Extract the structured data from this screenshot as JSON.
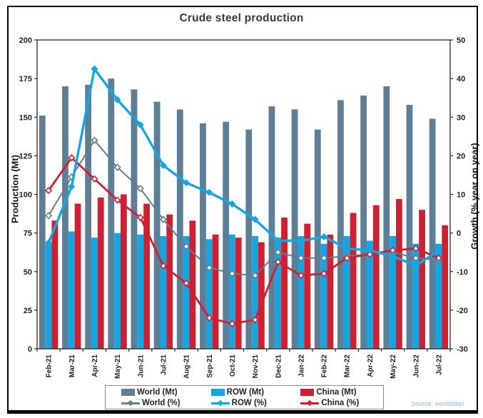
{
  "source": "Source: worldsteel",
  "colors": {
    "world": "#5c7e96",
    "row": "#15a6e2",
    "china": "#ce2030",
    "world_line": "#5f7e93",
    "axis_text": "#1f1f1f",
    "plot_border": "#262626",
    "source_text": "#94b2c8"
  },
  "legend": {
    "items": [
      {
        "label": "World (Mt)",
        "kind": "box",
        "color": "#5c7e96"
      },
      {
        "label": "ROW (Mt)",
        "kind": "box",
        "color": "#15a6e2"
      },
      {
        "label": "China (Mt)",
        "kind": "box",
        "color": "#ce2030"
      },
      {
        "label": "World (%)",
        "kind": "line",
        "color": "#5f7e93"
      },
      {
        "label": "ROW (%)",
        "kind": "line",
        "color": "#15a6e2"
      },
      {
        "label": "China (%)",
        "kind": "line",
        "color": "#ce2030"
      }
    ]
  },
  "chart_data": {
    "type": "combo-bar-line",
    "title": "Crude steel production",
    "ylabel_left": "Production (Mt)",
    "ylabel_right": "Growth (% year on year)",
    "ylim_left": [
      0,
      200
    ],
    "ytick_left_step": 25,
    "ylim_right": [
      -30,
      50
    ],
    "ytick_right_step": 10,
    "grid": false,
    "legend_position": "bottom",
    "categories": [
      "Feb-21",
      "Mar-21",
      "Apr-21",
      "May-21",
      "Jun-21",
      "Jul-21",
      "Aug-21",
      "Sep-21",
      "Oct-21",
      "Nov-21",
      "Dec-21",
      "Jan-22",
      "Feb-22",
      "Mar-22",
      "Apr-22",
      "May-22",
      "Jun-22",
      "Jul-22"
    ],
    "bar_series": [
      {
        "name": "World (Mt)",
        "axis": "left",
        "color": "#5c7e96",
        "values": [
          151,
          170,
          171,
          175,
          168,
          160,
          155,
          146,
          147,
          142,
          157,
          155,
          142,
          161,
          164,
          170,
          158,
          149
        ]
      },
      {
        "name": "ROW (Mt)",
        "axis": "left",
        "color": "#15a6e2",
        "values": [
          68,
          76,
          72,
          75,
          74,
          73,
          73,
          71,
          74,
          73,
          72,
          73,
          68,
          73,
          70,
          73,
          68,
          68
        ]
      },
      {
        "name": "China (Mt)",
        "axis": "left",
        "color": "#ce2030",
        "values": [
          83,
          94,
          98,
          100,
          94,
          87,
          83,
          74,
          72,
          69,
          85,
          81,
          74,
          88,
          93,
          97,
          90,
          80
        ]
      }
    ],
    "line_series": [
      {
        "name": "World (%)",
        "axis": "right",
        "color": "#5f7e93",
        "width": 2,
        "marker": "open-diamond",
        "values": [
          4.5,
          14.5,
          24,
          17,
          11.5,
          3.5,
          -3.5,
          -9,
          -10.5,
          -11,
          -5,
          -6.5,
          -6.5,
          -6,
          -5.5,
          -5,
          -6.5,
          -7
        ]
      },
      {
        "name": "China (%)",
        "axis": "right",
        "color": "#ce2030",
        "width": 2.8,
        "marker": "open-diamond",
        "values": [
          11,
          19.5,
          14,
          8.5,
          4,
          -8.5,
          -13,
          -22,
          -23.5,
          -22.5,
          -7.5,
          -11,
          -10.5,
          -6.5,
          -5.5,
          -4.5,
          -4,
          -6.5
        ]
      },
      {
        "name": "ROW (%)",
        "axis": "right",
        "color": "#15a6e2",
        "width": 3.4,
        "marker": "diamond",
        "values": [
          -2.5,
          12,
          42.5,
          34.5,
          28,
          17.5,
          13,
          10.5,
          7.5,
          3.5,
          -2,
          -2,
          -1,
          -4,
          -4.5,
          -6,
          -8.5,
          -4.5
        ]
      }
    ]
  }
}
